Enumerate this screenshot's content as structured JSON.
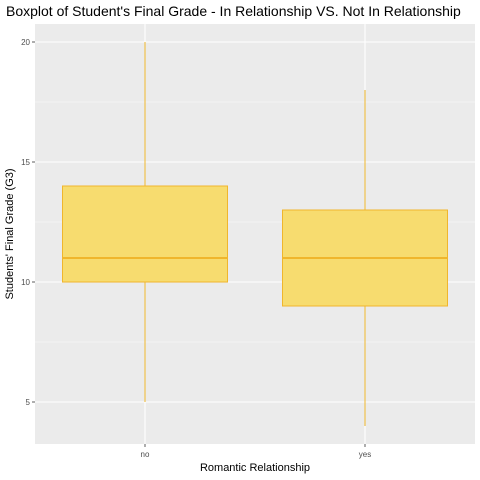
{
  "chart_data": {
    "type": "boxplot",
    "title": "Boxplot of Student's Final Grade - In Relationship VS. Not In Relationship",
    "xlabel": "Romantic Relationship",
    "ylabel": "Students' Final Grade (G3)",
    "categories": [
      "no",
      "yes"
    ],
    "boxes": [
      {
        "category": "no",
        "min": 5,
        "q1": 10,
        "median": 11,
        "q3": 14,
        "max": 20
      },
      {
        "category": "yes",
        "min": 4,
        "q1": 9,
        "median": 11,
        "q3": 13,
        "max": 18
      }
    ],
    "ylim": [
      3.25,
      20.75
    ],
    "yticks": [
      5,
      10,
      15,
      20
    ],
    "grid": true,
    "legend": "none",
    "colors": {
      "panel": "#ebebeb",
      "grid_major": "#ffffff",
      "box_fill": "#f7dc6f",
      "box_line": "#f0b62c"
    }
  }
}
